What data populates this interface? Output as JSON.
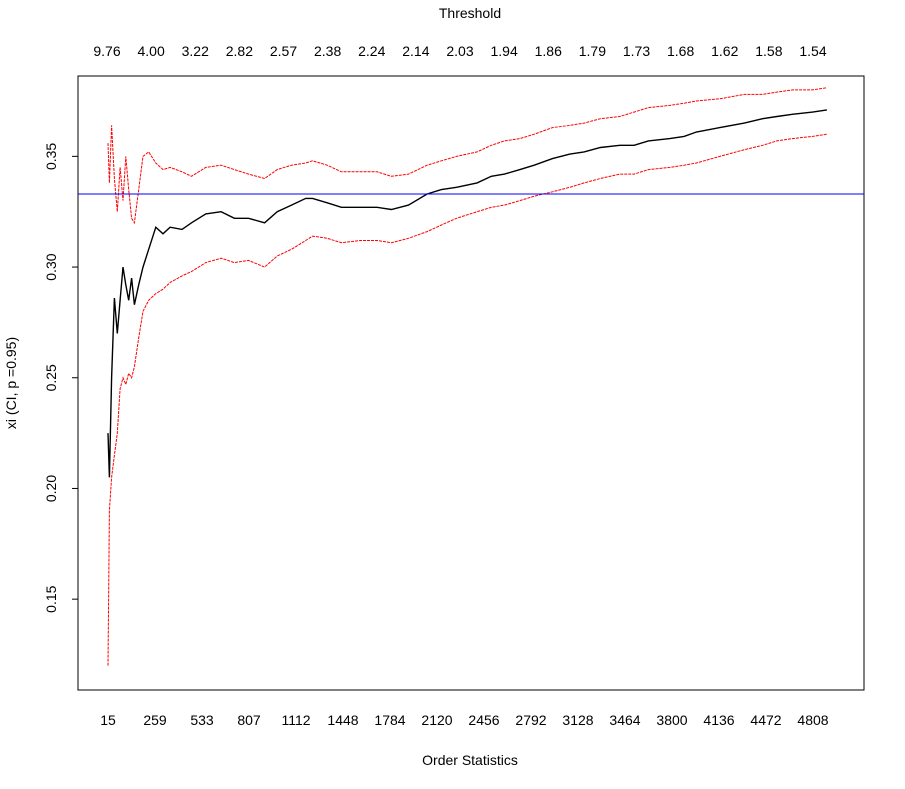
{
  "chart_data": {
    "type": "line",
    "title": "",
    "xlabel": "Order Statistics",
    "ylabel": "xi (CI, p =0.95)",
    "top_axis_label": "Threshold",
    "xlim": [
      15,
      5100
    ],
    "ylim": [
      0.118,
      0.375
    ],
    "x_ticks": [
      "15",
      "259",
      "533",
      "807",
      "1112",
      "1448",
      "1784",
      "2120",
      "2456",
      "2792",
      "3128",
      "3464",
      "3800",
      "4136",
      "4472",
      "4808"
    ],
    "top_ticks": [
      "9.76",
      "4.00",
      "3.22",
      "2.82",
      "2.57",
      "2.38",
      "2.24",
      "2.14",
      "2.03",
      "1.94",
      "1.86",
      "1.79",
      "1.73",
      "1.68",
      "1.62",
      "1.58",
      "1.54"
    ],
    "y_ticks": [
      "0.15",
      "0.20",
      "0.25",
      "0.30",
      "0.35"
    ],
    "grid": false,
    "legend": "none",
    "reference_line": {
      "y": 0.333,
      "color": "#0000ff"
    },
    "series": [
      {
        "role": "estimate",
        "color": "#000000",
        "x": [
          15,
          25,
          40,
          60,
          80,
          100,
          120,
          140,
          160,
          180,
          200,
          230,
          260,
          300,
          350,
          400,
          450,
          533,
          600,
          700,
          807,
          900,
          1000,
          1112,
          1200,
          1300,
          1400,
          1448,
          1550,
          1650,
          1784,
          1900,
          2000,
          2120,
          2250,
          2350,
          2456,
          2600,
          2700,
          2792,
          2900,
          3000,
          3128,
          3250,
          3350,
          3464,
          3600,
          3700,
          3800,
          3950,
          4050,
          4136,
          4300,
          4472,
          4600,
          4700,
          4808,
          4950,
          5050
        ],
        "y": [
          0.225,
          0.205,
          0.25,
          0.286,
          0.27,
          0.285,
          0.3,
          0.292,
          0.285,
          0.295,
          0.283,
          0.292,
          0.3,
          0.308,
          0.318,
          0.315,
          0.318,
          0.317,
          0.32,
          0.324,
          0.325,
          0.322,
          0.322,
          0.32,
          0.325,
          0.328,
          0.331,
          0.331,
          0.329,
          0.327,
          0.327,
          0.327,
          0.326,
          0.328,
          0.333,
          0.335,
          0.336,
          0.338,
          0.341,
          0.342,
          0.344,
          0.346,
          0.349,
          0.351,
          0.352,
          0.354,
          0.355,
          0.355,
          0.357,
          0.358,
          0.359,
          0.361,
          0.363,
          0.365,
          0.367,
          0.368,
          0.369,
          0.37,
          0.371
        ]
      },
      {
        "role": "upper-ci",
        "color": "#ff0000",
        "x": [
          15,
          25,
          40,
          60,
          80,
          100,
          120,
          140,
          160,
          180,
          200,
          230,
          260,
          300,
          350,
          400,
          450,
          533,
          600,
          700,
          807,
          900,
          1000,
          1112,
          1200,
          1300,
          1400,
          1448,
          1550,
          1650,
          1784,
          1900,
          2000,
          2120,
          2250,
          2350,
          2456,
          2600,
          2700,
          2792,
          2900,
          3000,
          3128,
          3250,
          3350,
          3464,
          3600,
          3700,
          3800,
          3950,
          4050,
          4136,
          4300,
          4472,
          4600,
          4700,
          4808,
          4950,
          5050
        ],
        "y": [
          0.356,
          0.338,
          0.364,
          0.34,
          0.325,
          0.345,
          0.33,
          0.35,
          0.335,
          0.322,
          0.32,
          0.335,
          0.35,
          0.352,
          0.347,
          0.344,
          0.345,
          0.343,
          0.341,
          0.345,
          0.346,
          0.344,
          0.342,
          0.34,
          0.344,
          0.346,
          0.347,
          0.348,
          0.346,
          0.343,
          0.343,
          0.343,
          0.341,
          0.342,
          0.346,
          0.348,
          0.35,
          0.352,
          0.355,
          0.357,
          0.358,
          0.36,
          0.363,
          0.364,
          0.365,
          0.367,
          0.368,
          0.37,
          0.372,
          0.373,
          0.374,
          0.375,
          0.376,
          0.378,
          0.378,
          0.379,
          0.38,
          0.38,
          0.381
        ]
      },
      {
        "role": "lower-ci",
        "color": "#ff0000",
        "x": [
          15,
          25,
          40,
          60,
          80,
          100,
          120,
          140,
          160,
          180,
          200,
          230,
          260,
          300,
          350,
          400,
          450,
          533,
          600,
          700,
          807,
          900,
          1000,
          1112,
          1200,
          1300,
          1400,
          1448,
          1550,
          1650,
          1784,
          1900,
          2000,
          2120,
          2250,
          2350,
          2456,
          2600,
          2700,
          2792,
          2900,
          3000,
          3128,
          3250,
          3350,
          3464,
          3600,
          3700,
          3800,
          3950,
          4050,
          4136,
          4300,
          4472,
          4600,
          4700,
          4808,
          4950,
          5050
        ],
        "y": [
          0.12,
          0.19,
          0.205,
          0.215,
          0.225,
          0.245,
          0.25,
          0.247,
          0.252,
          0.25,
          0.255,
          0.268,
          0.28,
          0.285,
          0.288,
          0.29,
          0.293,
          0.296,
          0.298,
          0.302,
          0.304,
          0.302,
          0.303,
          0.3,
          0.305,
          0.308,
          0.312,
          0.314,
          0.313,
          0.311,
          0.312,
          0.312,
          0.311,
          0.313,
          0.316,
          0.319,
          0.322,
          0.325,
          0.327,
          0.328,
          0.33,
          0.332,
          0.334,
          0.336,
          0.338,
          0.34,
          0.342,
          0.342,
          0.344,
          0.345,
          0.346,
          0.347,
          0.35,
          0.353,
          0.355,
          0.357,
          0.358,
          0.359,
          0.36
        ]
      }
    ]
  }
}
